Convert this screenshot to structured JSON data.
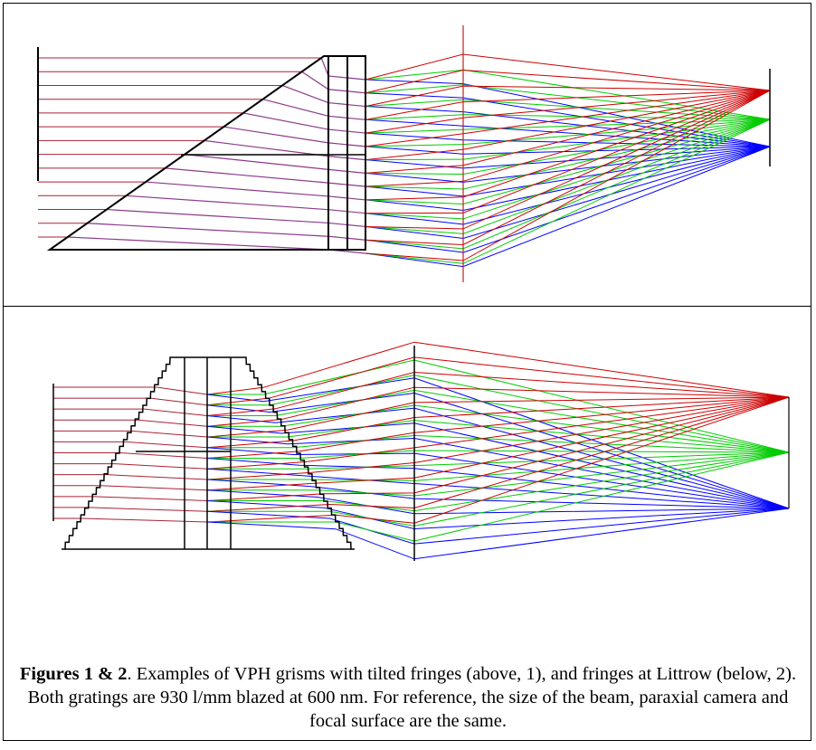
{
  "caption": {
    "label": "Figures 1 & 2",
    "text": ". Examples of  VPH grisms with tilted fringes (above, 1), and fringes at Littrow (below, 2).  Both gratings are 930 l/mm blazed at 600 nm.  For reference, the size of the beam, paraxial camera and focal surface are the same."
  },
  "colors": {
    "red": "#cc0000",
    "green": "#00cc00",
    "blue": "#0000ff",
    "input_ray": "#aa2233",
    "outline": "#000000"
  }
}
